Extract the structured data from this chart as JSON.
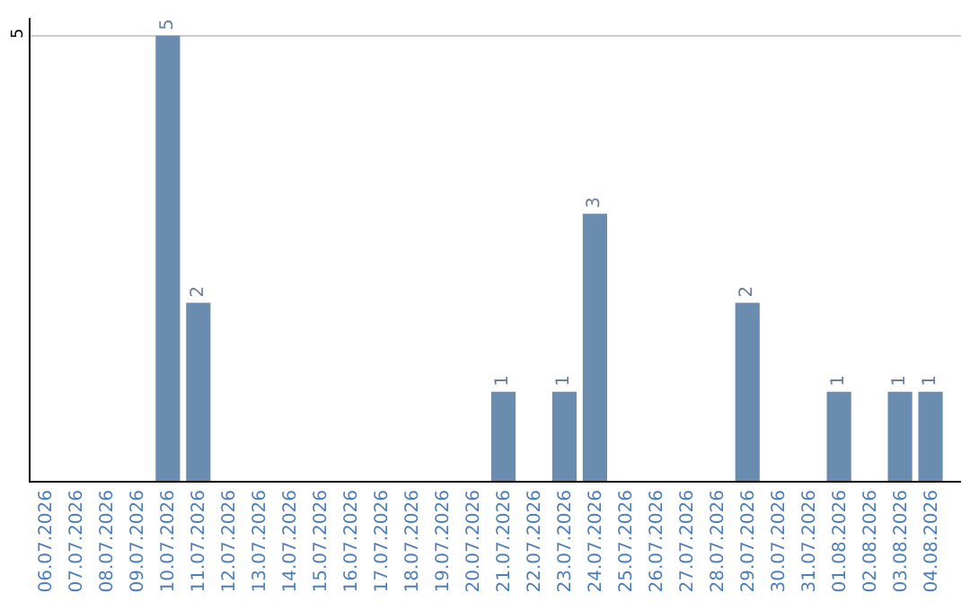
{
  "chart_data": {
    "type": "bar",
    "categories": [
      "06.07.2026",
      "07.07.2026",
      "08.07.2026",
      "09.07.2026",
      "10.07.2026",
      "11.07.2026",
      "12.07.2026",
      "13.07.2026",
      "14.07.2026",
      "15.07.2026",
      "16.07.2026",
      "17.07.2026",
      "18.07.2026",
      "19.07.2026",
      "20.07.2026",
      "21.07.2026",
      "22.07.2026",
      "23.07.2026",
      "24.07.2026",
      "25.07.2026",
      "26.07.2026",
      "27.07.2026",
      "28.07.2026",
      "29.07.2026",
      "30.07.2026",
      "31.07.2026",
      "01.08.2026",
      "02.08.2026",
      "03.08.2026",
      "04.08.2026"
    ],
    "values": [
      0,
      0,
      0,
      0,
      5,
      2,
      0,
      0,
      0,
      0,
      0,
      0,
      0,
      0,
      0,
      1,
      0,
      1,
      3,
      0,
      0,
      0,
      0,
      2,
      0,
      0,
      1,
      0,
      1,
      1
    ],
    "value_labels": [
      null,
      null,
      null,
      null,
      "5",
      "2",
      null,
      null,
      null,
      null,
      null,
      null,
      null,
      null,
      null,
      "1",
      null,
      "1",
      "3",
      null,
      null,
      null,
      null,
      "2",
      null,
      null,
      "1",
      null,
      "1",
      "1"
    ],
    "color": "#6a8caf",
    "ylim": [
      0,
      5.2
    ],
    "yticks": [
      5
    ],
    "grid": "y",
    "legend": false
  }
}
